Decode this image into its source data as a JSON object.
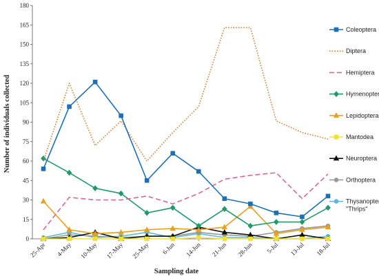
{
  "chart_data": {
    "type": "line",
    "xlabel": "Sampling date",
    "ylabel": "Number of individuals collected",
    "ylim": [
      0,
      180
    ],
    "yticks": [
      0,
      15,
      30,
      45,
      60,
      75,
      90,
      105,
      120,
      135,
      150,
      165,
      180
    ],
    "categories": [
      "25-Apr",
      "4-May",
      "10-May",
      "17-May",
      "25-May",
      "6-Jun",
      "14-Jun",
      "21-Jun",
      "28-Jun",
      "5-Jul",
      "13-Jul",
      "18-Jul"
    ],
    "legend_position": "right",
    "series": [
      {
        "name": "Coleoptera",
        "color": "#1f6fb5",
        "line": "solid",
        "marker": "square",
        "values": [
          54,
          102,
          121,
          95,
          45,
          66,
          52,
          31,
          27,
          20,
          17,
          33
        ]
      },
      {
        "name": "Diptera",
        "color": "#e07a2a",
        "line": "dotted",
        "marker": "none",
        "values": [
          60,
          120,
          72,
          91,
          60,
          82,
          102,
          163,
          163,
          91,
          82,
          77
        ]
      },
      {
        "name": "Hemiptera",
        "color": "#d9668f",
        "line": "dashed",
        "marker": "none",
        "values": [
          7,
          32,
          30,
          30,
          33,
          27,
          35,
          46,
          49,
          51,
          31,
          50
        ]
      },
      {
        "name": "Hymenoptera",
        "color": "#1f9a6a",
        "line": "solid",
        "marker": "diamond",
        "values": [
          62,
          51,
          39,
          35,
          20,
          24,
          10,
          23,
          10,
          13,
          13,
          24
        ]
      },
      {
        "name": "Lepidoptera",
        "color": "#e8a020",
        "line": "solid",
        "marker": "triangle",
        "values": [
          29,
          7,
          4,
          5,
          7,
          8,
          7,
          9,
          25,
          4,
          7,
          9
        ]
      },
      {
        "name": "Mantodea",
        "color": "#f2e03a",
        "line": "solid",
        "marker": "square",
        "values": [
          0,
          0,
          0,
          0,
          0,
          0,
          1,
          0,
          0,
          0,
          0,
          0
        ]
      },
      {
        "name": "Neuroptera",
        "color": "#111111",
        "line": "solid",
        "marker": "triangle",
        "values": [
          0,
          1,
          5,
          0,
          2,
          2,
          9,
          5,
          3,
          0,
          3,
          0
        ]
      },
      {
        "name": "Orthoptera",
        "color": "#999999",
        "line": "solid",
        "marker": "circle",
        "values": [
          0,
          3,
          2,
          1,
          2,
          2,
          5,
          3,
          2,
          5,
          8,
          10
        ]
      },
      {
        "name": "Thysanoptera \"Thrips\"",
        "color": "#5bb8e0",
        "line": "solid",
        "marker": "circle",
        "values": [
          1,
          5,
          1,
          2,
          5,
          1,
          4,
          1,
          1,
          0,
          0,
          2
        ]
      }
    ]
  }
}
